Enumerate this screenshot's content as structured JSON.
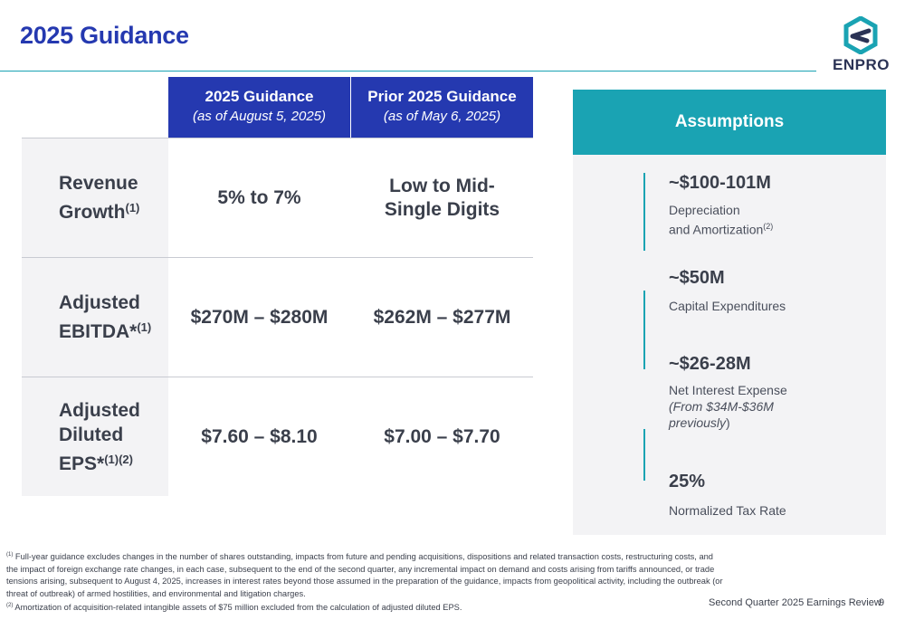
{
  "header": {
    "title": "2025 Guidance",
    "logo_text": "ENPRO"
  },
  "colors": {
    "primary_blue": "#2539b0",
    "teal": "#1aa3b3",
    "panel_gray": "#f3f3f5"
  },
  "guidance_table": {
    "columns": [
      {
        "title": "2025 Guidance",
        "subtitle": "(as of August 5, 2025)"
      },
      {
        "title": "Prior 2025 Guidance",
        "subtitle": "(as of May 6, 2025)"
      }
    ],
    "rows": [
      {
        "label_lines": [
          "Revenue",
          "Growth"
        ],
        "label_sup": "(1)",
        "values": [
          "5% to 7%",
          "Low to Mid-Single Digits"
        ]
      },
      {
        "label_lines": [
          "Adjusted",
          "EBITDA*"
        ],
        "label_sup": "(1)",
        "values": [
          "$270M – $280M",
          "$262M – $277M"
        ]
      },
      {
        "label_lines": [
          "Adjusted",
          "Diluted",
          "EPS*"
        ],
        "label_sup": "(1)(2)",
        "values": [
          "$7.60 – $8.10",
          "$7.00 – $7.70"
        ]
      }
    ]
  },
  "assumptions": {
    "title": "Assumptions",
    "items": [
      {
        "value": "~$100-101M",
        "desc_line1": "Depreciation",
        "desc_line2": "and Amortization",
        "desc_sup": "(2)"
      },
      {
        "value": "~$50M",
        "desc_line1": "Capital Expenditures"
      },
      {
        "value": "~$26-28M",
        "desc_line1": "Net Interest Expense",
        "desc_italic1": "(From $34M-$36M",
        "desc_italic2": "previously",
        "desc_italic2_close": ")"
      },
      {
        "value": "25%",
        "desc_line1": "Normalized Tax Rate"
      }
    ]
  },
  "footnotes": {
    "fn1_marker": "(1)",
    "fn1_text": " Full-year guidance excludes changes in the number of shares outstanding, impacts from future and pending acquisitions, dispositions and related transaction costs, restructuring costs, and the impact of foreign exchange rate changes, in each case, subsequent to the end of the second quarter, any incremental impact on demand and costs arising from tariffs announced, or trade tensions arising, subsequent to August 4, 2025, increases in interest rates beyond those assumed in the preparation of the guidance, impacts from geopolitical activity, including the outbreak (or threat of outbreak) of armed hostilities, and environmental and litigation charges.",
    "fn2_marker": "(2)",
    "fn2_text": " Amortization of acquisition-related intangible assets of $75 million excluded from the calculation of adjusted diluted EPS."
  },
  "footer": {
    "label": "Second Quarter 2025 Earnings Review",
    "page_number": "9"
  }
}
